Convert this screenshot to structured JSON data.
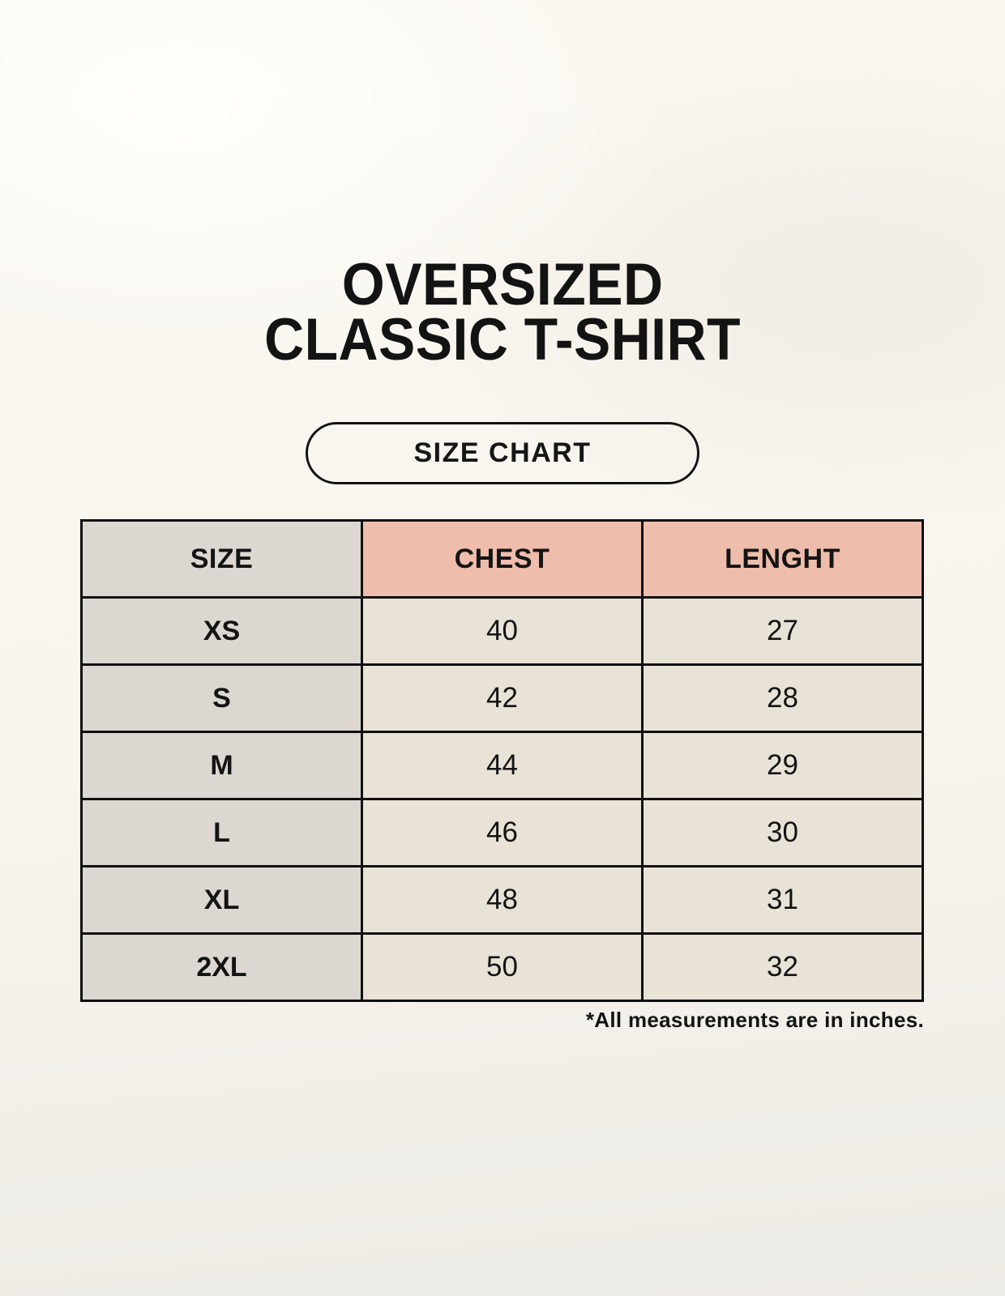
{
  "header": {
    "title_line1": "OVERSIZED",
    "title_line2": "CLASSIC T-SHIRT",
    "badge_label": "SIZE CHART"
  },
  "table": {
    "headers": [
      "SIZE",
      "CHEST",
      "LENGHT"
    ],
    "rows": [
      {
        "size": "XS",
        "chest": "40",
        "lenght": "27"
      },
      {
        "size": "S",
        "chest": "42",
        "lenght": "28"
      },
      {
        "size": "M",
        "chest": "44",
        "lenght": "29"
      },
      {
        "size": "L",
        "chest": "46",
        "lenght": "30"
      },
      {
        "size": "XL",
        "chest": "48",
        "lenght": "31"
      },
      {
        "size": "2XL",
        "chest": "50",
        "lenght": "32"
      }
    ],
    "footnote": "*All measurements are in inches.",
    "units": "inches"
  },
  "colors": {
    "background": "#f8f5ee",
    "header_pink": "#eebdac",
    "size_column_gray": "#ddd7d1",
    "value_cell_cream": "#e9e2d7",
    "border": "#101010",
    "text": "#141414"
  }
}
